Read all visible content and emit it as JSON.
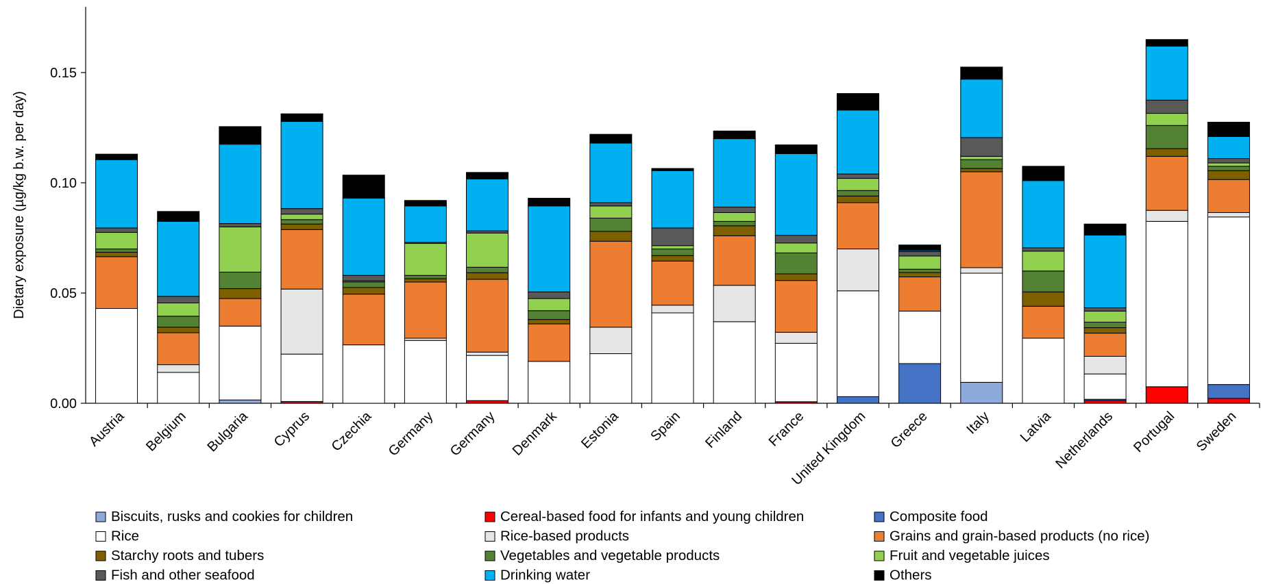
{
  "chart_data": {
    "type": "bar",
    "stacked": true,
    "title": "",
    "xlabel": "",
    "ylabel": "Dietary exposure (µg/kg b.w. per day)",
    "ylim": [
      0,
      0.175
    ],
    "yticks": [
      "0.00",
      "0.05",
      "0.10",
      "0.15"
    ],
    "ytick_values": [
      0,
      0.05,
      0.1,
      0.15
    ],
    "grid": false,
    "legend_position": "bottom",
    "categories": [
      "Austria",
      "Belgium",
      "Bulgaria",
      "Cyprus",
      "Czechia",
      "Germany",
      "Germany",
      "Denmark",
      "Estonia",
      "Spain",
      "Finland",
      "France",
      "United Kingdom",
      "Greece",
      "Italy",
      "Latvia",
      "Netherlands",
      "Portugal",
      "Sweden"
    ],
    "series": [
      {
        "name": "Biscuits, rusks and cookies for children",
        "color": "#8EA9DB",
        "values": [
          0,
          0,
          0.0015,
          0,
          0,
          0,
          0,
          0,
          0,
          0,
          0,
          0,
          0,
          0,
          0.0095,
          0,
          0,
          0,
          0
        ]
      },
      {
        "name": "Cereal-based food for infants and young children",
        "color": "#FF0000",
        "values": [
          0,
          0,
          0,
          0.0008,
          0,
          0,
          0.0012,
          0,
          0,
          0,
          0,
          0.0007,
          0,
          0,
          0,
          0,
          0.0012,
          0.0075,
          0.0022
        ]
      },
      {
        "name": "Composite food",
        "color": "#4472C4",
        "values": [
          0,
          0,
          0,
          0,
          0,
          0,
          0,
          0,
          0,
          0,
          0,
          0,
          0.003,
          0.018,
          0,
          0,
          0.0006,
          0,
          0.0063
        ]
      },
      {
        "name": "Rice",
        "color": "#FFFFFF",
        "values": [
          0.043,
          0.014,
          0.0335,
          0.0215,
          0.0265,
          0.0285,
          0.0205,
          0.019,
          0.0225,
          0.041,
          0.037,
          0.0265,
          0.048,
          0.0238,
          0.0495,
          0.0295,
          0.0115,
          0.075,
          0.076
        ]
      },
      {
        "name": "Rice-based products",
        "color": "#E7E6E6",
        "values": [
          0,
          0.0035,
          0,
          0.0295,
          0,
          0.001,
          0.0015,
          0,
          0.012,
          0.0035,
          0.0165,
          0.005,
          0.019,
          0,
          0.0025,
          0,
          0.008,
          0.005,
          0.002
        ]
      },
      {
        "name": "Grains and grain-based products (no rice)",
        "color": "#ED7D31",
        "values": [
          0.0235,
          0.0145,
          0.0125,
          0.027,
          0.023,
          0.0255,
          0.033,
          0.017,
          0.039,
          0.02,
          0.0225,
          0.0235,
          0.021,
          0.0155,
          0.0435,
          0.0145,
          0.0105,
          0.0245,
          0.015
        ]
      },
      {
        "name": "Starchy roots and tubers",
        "color": "#7F6000",
        "values": [
          0.002,
          0.0025,
          0.0045,
          0.0025,
          0.003,
          0.0015,
          0.003,
          0.002,
          0.0045,
          0.0025,
          0.0045,
          0.003,
          0.003,
          0.002,
          0.0015,
          0.0065,
          0.0025,
          0.0035,
          0.004
        ]
      },
      {
        "name": "Vegetables and vegetable products",
        "color": "#548235",
        "values": [
          0.0015,
          0.005,
          0.0075,
          0.002,
          0.0025,
          0.0015,
          0.0025,
          0.004,
          0.006,
          0.003,
          0.002,
          0.0095,
          0.0025,
          0.0015,
          0.004,
          0.0095,
          0.0025,
          0.0105,
          0.002
        ]
      },
      {
        "name": "Fruit and vegetable juices",
        "color": "#92D050",
        "values": [
          0.0075,
          0.006,
          0.0205,
          0.0025,
          0.0005,
          0.0145,
          0.0155,
          0.0055,
          0.0055,
          0.0015,
          0.004,
          0.0045,
          0.0055,
          0.006,
          0.0015,
          0.009,
          0.005,
          0.0055,
          0.0015
        ]
      },
      {
        "name": "Fish and other seafood",
        "color": "#595959",
        "values": [
          0.002,
          0.003,
          0.0015,
          0.0025,
          0.0025,
          0.0005,
          0.001,
          0.003,
          0.0015,
          0.008,
          0.0025,
          0.0035,
          0.002,
          0.002,
          0.0085,
          0.0015,
          0.0015,
          0.006,
          0.002
        ]
      },
      {
        "name": "Drinking water",
        "color": "#00B0F0",
        "values": [
          0.031,
          0.034,
          0.036,
          0.0395,
          0.035,
          0.0165,
          0.0235,
          0.039,
          0.027,
          0.026,
          0.031,
          0.037,
          0.029,
          0.0005,
          0.0265,
          0.0305,
          0.033,
          0.0245,
          0.01
        ]
      },
      {
        "name": "Others",
        "color": "#000000",
        "values": [
          0.0025,
          0.0045,
          0.008,
          0.0035,
          0.0105,
          0.0025,
          0.003,
          0.0035,
          0.004,
          0.001,
          0.0035,
          0.004,
          0.0075,
          0.0025,
          0.0055,
          0.0065,
          0.005,
          0.003,
          0.0065
        ]
      }
    ]
  }
}
